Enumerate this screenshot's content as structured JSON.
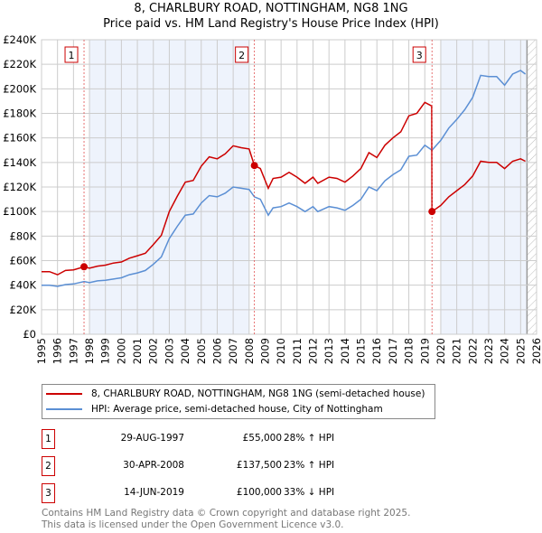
{
  "chart_data": {
    "type": "line",
    "title": "8, CHARLBURY ROAD, NOTTINGHAM, NG8 1NG",
    "subtitle": "Price paid vs. HM Land Registry's House Price Index (HPI)",
    "xlim": [
      1995,
      2026
    ],
    "ylim": [
      0,
      240000
    ],
    "x_ticks": [
      "1995",
      "1996",
      "1997",
      "1998",
      "1999",
      "2000",
      "2001",
      "2002",
      "2003",
      "2004",
      "2005",
      "2006",
      "2007",
      "2008",
      "2009",
      "2010",
      "2011",
      "2012",
      "2013",
      "2014",
      "2015",
      "2016",
      "2017",
      "2018",
      "2019",
      "2020",
      "2021",
      "2022",
      "2023",
      "2024",
      "2025",
      "2026"
    ],
    "y_ticks": [
      {
        "v": 0,
        "label": "£0"
      },
      {
        "v": 20000,
        "label": "£20K"
      },
      {
        "v": 40000,
        "label": "£40K"
      },
      {
        "v": 60000,
        "label": "£60K"
      },
      {
        "v": 80000,
        "label": "£80K"
      },
      {
        "v": 100000,
        "label": "£100K"
      },
      {
        "v": 120000,
        "label": "£120K"
      },
      {
        "v": 140000,
        "label": "£140K"
      },
      {
        "v": 160000,
        "label": "£160K"
      },
      {
        "v": 180000,
        "label": "£180K"
      },
      {
        "v": 200000,
        "label": "£200K"
      },
      {
        "v": 220000,
        "label": "£220K"
      },
      {
        "v": 240000,
        "label": "£240K"
      }
    ],
    "grid": true,
    "shaded_periods": [
      [
        1998,
        2008
      ],
      [
        2020,
        2025.4
      ]
    ],
    "forecast_hatch_from": 2025.4,
    "series": [
      {
        "name": "8, CHARLBURY ROAD, NOTTINGHAM, NG8 1NG (semi-detached house)",
        "color": "#cc0000",
        "x": [
          1995,
          1995.5,
          1996,
          1996.5,
          1997,
          1997.67,
          1998,
          1998.5,
          1999,
          1999.5,
          2000,
          2000.5,
          2001,
          2001.5,
          2002,
          2002.5,
          2003,
          2003.5,
          2004,
          2004.5,
          2005,
          2005.5,
          2006,
          2006.5,
          2007,
          2007.5,
          2008,
          2008.33,
          2008.7,
          2009.2,
          2009.5,
          2010,
          2010.5,
          2011,
          2011.5,
          2012,
          2012.3,
          2013,
          2013.5,
          2014,
          2014.5,
          2015,
          2015.5,
          2016,
          2016.5,
          2017,
          2017.5,
          2018,
          2018.5,
          2019,
          2019.43,
          2019.45,
          2020,
          2020.5,
          2021,
          2021.5,
          2022,
          2022.5,
          2023,
          2023.5,
          2024,
          2024.5,
          2025,
          2025.3
        ],
        "y": [
          51000,
          51000,
          48500,
          52000,
          52500,
          55000,
          53800,
          55500,
          56300,
          58000,
          58900,
          62000,
          64000,
          66000,
          73000,
          80600,
          100000,
          112600,
          124000,
          125400,
          137000,
          144600,
          143000,
          147000,
          153600,
          152000,
          151000,
          137500,
          135000,
          119000,
          127000,
          128000,
          132000,
          128000,
          123000,
          128000,
          123000,
          128000,
          127000,
          124000,
          129000,
          135000,
          148000,
          144000,
          154000,
          160000,
          165000,
          178000,
          180000,
          189000,
          186000,
          100000,
          105000,
          112000,
          117000,
          122000,
          129000,
          141000,
          140000,
          140000,
          135000,
          141000,
          143000,
          141000
        ]
      },
      {
        "name": "HPI: Average price, semi-detached house, City of Nottingham",
        "color": "#5b8fd4",
        "x": [
          1995,
          1995.5,
          1996,
          1996.5,
          1997,
          1997.67,
          1998,
          1998.5,
          1999,
          1999.5,
          2000,
          2000.5,
          2001,
          2001.5,
          2002,
          2002.5,
          2003,
          2003.5,
          2004,
          2004.5,
          2005,
          2005.5,
          2006,
          2006.5,
          2007,
          2007.5,
          2008,
          2008.33,
          2008.7,
          2009.2,
          2009.5,
          2010,
          2010.5,
          2011,
          2011.5,
          2012,
          2012.3,
          2013,
          2013.5,
          2014,
          2014.5,
          2015,
          2015.5,
          2016,
          2016.5,
          2017,
          2017.5,
          2018,
          2018.5,
          2019,
          2019.45,
          2020,
          2020.5,
          2021,
          2021.5,
          2022,
          2022.5,
          2023,
          2023.5,
          2024,
          2024.5,
          2025,
          2025.3
        ],
        "y": [
          40000,
          40000,
          39000,
          40500,
          41000,
          43000,
          42000,
          43500,
          44000,
          45000,
          46000,
          48500,
          50000,
          52000,
          57000,
          63000,
          78000,
          88000,
          97000,
          98000,
          107000,
          113000,
          112000,
          115000,
          120000,
          119000,
          118000,
          112000,
          110000,
          97000,
          103000,
          104000,
          107000,
          104000,
          100000,
          104000,
          100000,
          104000,
          103000,
          101000,
          105000,
          110000,
          120000,
          117000,
          125000,
          130000,
          134000,
          145000,
          146000,
          154000,
          150000,
          158000,
          168000,
          175000,
          183000,
          193000,
          211000,
          210000,
          210000,
          203000,
          212000,
          215000,
          212000
        ]
      }
    ],
    "sales": [
      {
        "label": "1",
        "x": 1997.66,
        "y": 55000
      },
      {
        "label": "2",
        "x": 2008.33,
        "y": 137500
      },
      {
        "label": "3",
        "x": 2019.45,
        "y": 100000
      }
    ],
    "legend_placement": "below"
  },
  "table": [
    {
      "num": "1",
      "date": "29-AUG-1997",
      "price": "£55,000",
      "hpi": "28% ↑ HPI"
    },
    {
      "num": "2",
      "date": "30-APR-2008",
      "price": "£137,500",
      "hpi": "23% ↑ HPI"
    },
    {
      "num": "3",
      "date": "14-JUN-2019",
      "price": "£100,000",
      "hpi": "33% ↓ HPI"
    }
  ],
  "footer": {
    "line1": "Contains HM Land Registry data © Crown copyright and database right 2025.",
    "line2": "This data is licensed under the Open Government Licence v3.0."
  }
}
